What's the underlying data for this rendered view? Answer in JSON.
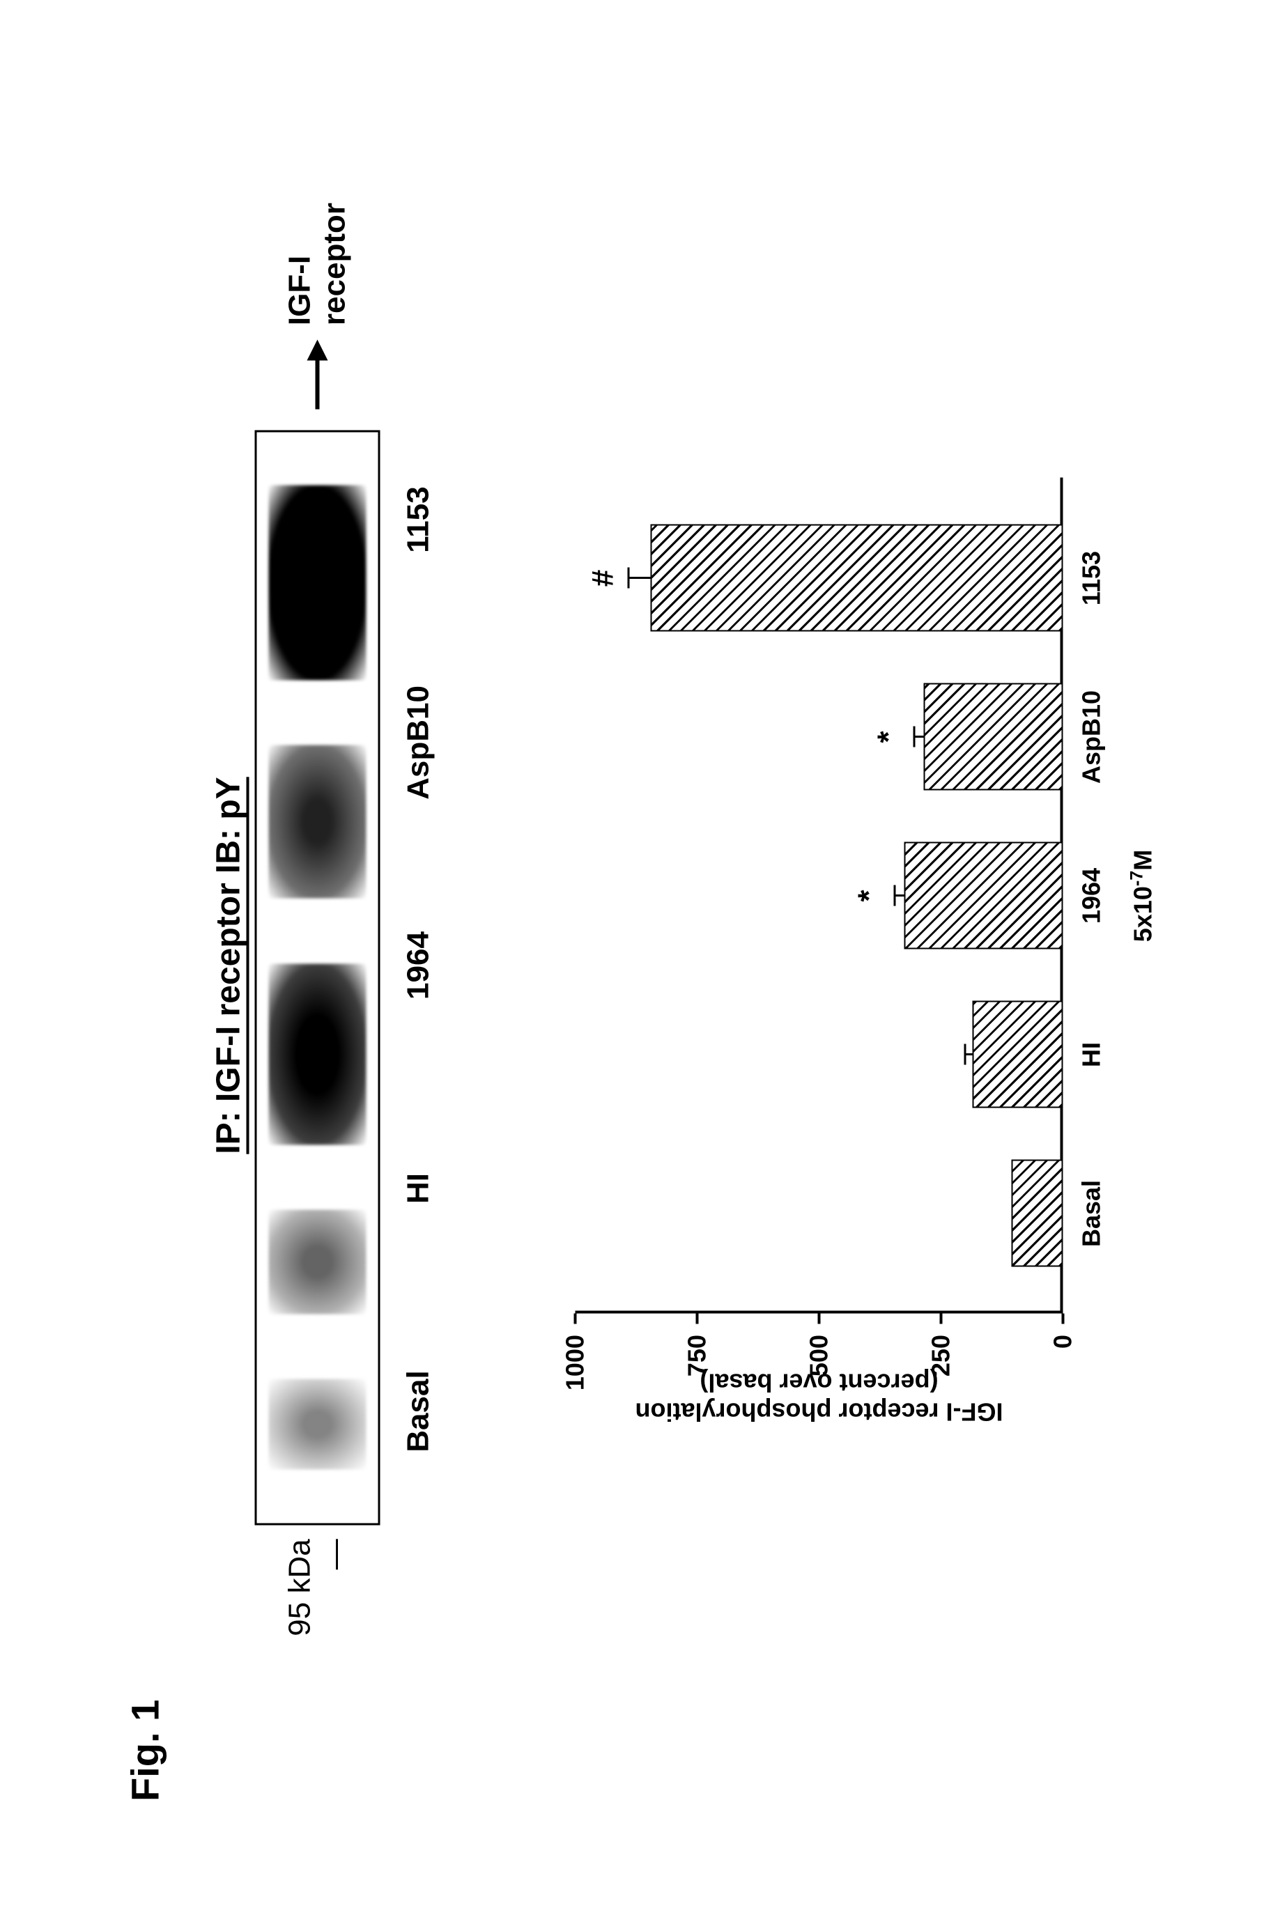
{
  "figure_label": "Fig. 1",
  "blot": {
    "header": "IP: IGF-I receptor   IB: pY",
    "kda_label": "95 kDa —",
    "arrow_label": "IGF-I receptor",
    "lanes": [
      "Basal",
      "HI",
      "1964",
      "AspB10",
      "1153"
    ],
    "band_intensities": [
      0.25,
      0.35,
      0.7,
      0.55,
      0.95
    ],
    "band_widths": [
      130,
      150,
      260,
      220,
      280
    ]
  },
  "chart": {
    "type": "bar",
    "y_label_line1": "IGF-I receptor phosphorylation",
    "y_label_line2": "(percent over basal)",
    "x_axis_label": "5x10⁻⁷M",
    "ylim": [
      0,
      1000
    ],
    "yticks": [
      0,
      250,
      500,
      750,
      1000
    ],
    "categories": [
      "Basal",
      "HI",
      "1964",
      "AspB10",
      "1153"
    ],
    "values": [
      100,
      180,
      320,
      280,
      840
    ],
    "errors": [
      0,
      20,
      25,
      25,
      50
    ],
    "sig_marks": [
      "",
      "",
      "*",
      "*",
      "#"
    ],
    "bar_fill_pattern": "diagonal-hatch",
    "bar_border_color": "#000000",
    "background_color": "#ffffff",
    "axis_color": "#000000",
    "label_fontsize": 36,
    "title_fontsize": 48
  }
}
